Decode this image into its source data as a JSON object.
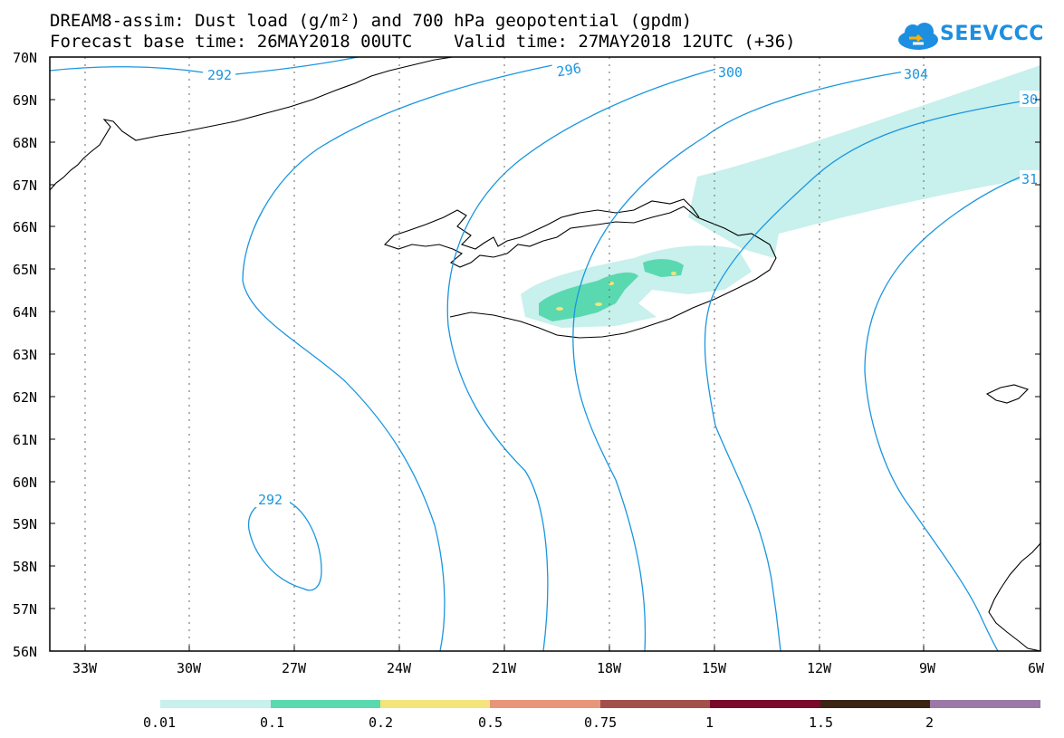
{
  "header": {
    "title_line1": "DREAM8-assim: Dust load (g/m²) and 700 hPa geopotential (gpdm)",
    "title_line2": "Forecast base time: 26MAY2018 00UTC    Valid time: 27MAY2018 12UTC (+36)"
  },
  "logo": {
    "text": "SEEVCCC",
    "icon": "cloud-icon"
  },
  "map": {
    "lat_labels": [
      "70N",
      "69N",
      "68N",
      "67N",
      "66N",
      "65N",
      "64N",
      "63N",
      "62N",
      "61N",
      "60N",
      "59N",
      "58N",
      "57N",
      "56N"
    ],
    "lon_labels": [
      "33W",
      "30W",
      "27W",
      "24W",
      "21W",
      "18W",
      "15W",
      "12W",
      "9W",
      "6W"
    ],
    "contour_labels": [
      "292",
      "296",
      "300",
      "304",
      "30",
      "31",
      "292"
    ],
    "contour_color": "#1a96e0"
  },
  "legend": {
    "labels": [
      "0.01",
      "0.1",
      "0.2",
      "0.5",
      "0.75",
      "1",
      "1.5",
      "2"
    ],
    "colors": [
      "#c8f0ec",
      "#5ad9b0",
      "#f4e47c",
      "#e8967a",
      "#a4504a",
      "#7a0a2a",
      "#3a2414",
      "#9a78a8"
    ]
  }
}
